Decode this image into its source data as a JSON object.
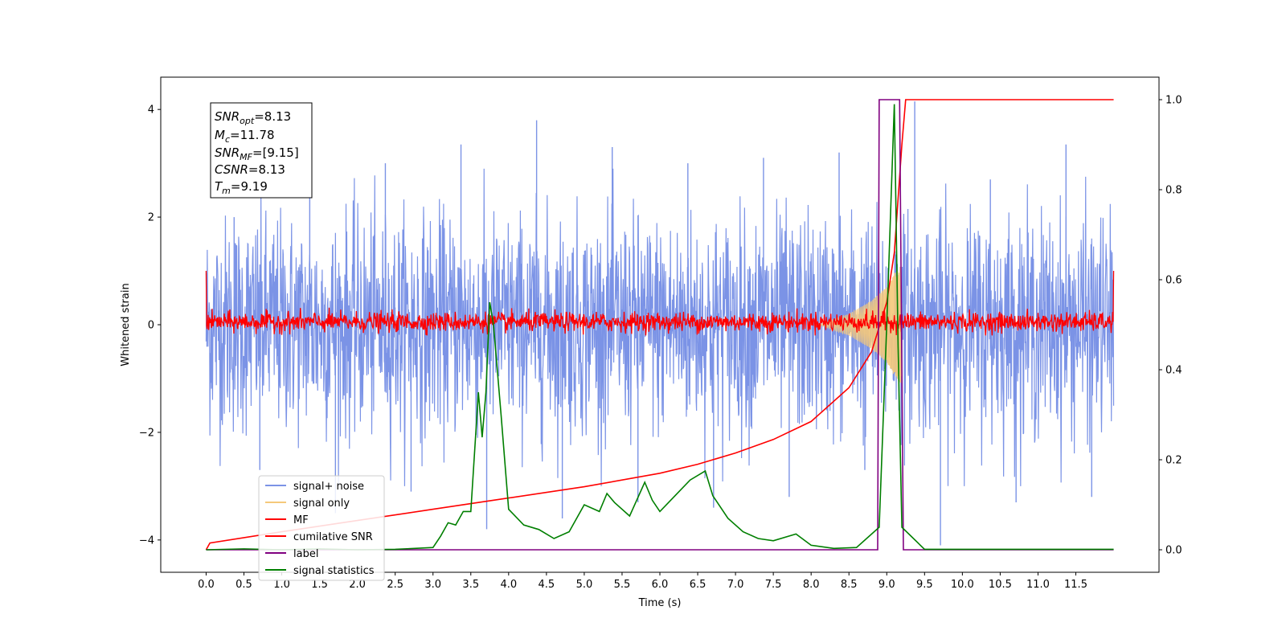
{
  "chart_data": {
    "type": "line",
    "xlabel": "Time (s)",
    "ylabel": "Whitened strain",
    "xlim": [
      -0.6,
      12.6
    ],
    "ylim": [
      -4.6,
      4.6
    ],
    "y2lim": [
      -0.05,
      1.05
    ],
    "x_ticks": [
      0.0,
      0.5,
      1.0,
      1.5,
      2.0,
      2.5,
      3.0,
      3.5,
      4.0,
      4.5,
      5.0,
      5.5,
      6.0,
      6.5,
      7.0,
      7.5,
      8.0,
      8.5,
      9.0,
      9.5,
      10.0,
      10.5,
      11.0,
      11.5
    ],
    "x_tick_labels": [
      "0.0",
      "0.5",
      "1.0",
      "1.5",
      "2.0",
      "2.5",
      "3.0",
      "3.5",
      "4.0",
      "4.5",
      "5.0",
      "5.5",
      "6.0",
      "6.5",
      "7.0",
      "7.5",
      "8.0",
      "8.5",
      "9.0",
      "9.5",
      "10.0",
      "10.5",
      "11.0",
      "11.5"
    ],
    "y_ticks": [
      -4,
      -2,
      0,
      2,
      4
    ],
    "y_tick_labels": [
      "−4",
      "−2",
      "0",
      "2",
      "4"
    ],
    "y2_ticks": [
      0.0,
      0.2,
      0.4,
      0.6,
      0.8,
      1.0
    ],
    "y2_tick_labels": [
      "0.0",
      "0.2",
      "0.4",
      "0.6",
      "0.8",
      "1.0"
    ],
    "info_box": {
      "lines": [
        {
          "base": "SNR",
          "sub": "opt",
          "value": "=8.13"
        },
        {
          "base": "M",
          "sub": "c",
          "value": "=11.78"
        },
        {
          "base": "SNR",
          "sub": "MF",
          "value": "=[9.15]"
        },
        {
          "base": "CSNR",
          "sub": "",
          "value": "=8.13"
        },
        {
          "base": "T",
          "sub": "m",
          "value": "=9.19"
        }
      ]
    },
    "legend": {
      "position": "lower-left",
      "items": [
        {
          "label": "signal+ noise",
          "color": "#7b93e6"
        },
        {
          "label": "signal only",
          "color": "#f5c97a"
        },
        {
          "label": "MF",
          "color": "#ff0000"
        },
        {
          "label": "cumilative SNR",
          "color": "#ff0000"
        },
        {
          "label": "label",
          "color": "#800080"
        },
        {
          "label": "signal statistics",
          "color": "#007f00"
        }
      ]
    },
    "series": [
      {
        "name": "signal+ noise",
        "axis": "left",
        "color": "#7b93e6",
        "x_range": [
          0.0,
          12.0
        ],
        "noise_std": 1.0,
        "peak_values": [
          2.0,
          2.6,
          3.0,
          3.35,
          3.8,
          3.3,
          3.0,
          3.1,
          3.2,
          4.15,
          2.7,
          3.35
        ],
        "trough_values": [
          -2.7,
          -3.5,
          -3.1,
          -3.8,
          -3.6,
          -3.3,
          -3.4,
          -3.2,
          -2.7,
          -4.1,
          -3.3,
          -3.2
        ]
      },
      {
        "name": "signal only",
        "axis": "left",
        "color": "#f5c97a",
        "envelope": [
          [
            8.1,
            0.0
          ],
          [
            8.5,
            0.2
          ],
          [
            8.8,
            0.45
          ],
          [
            9.0,
            0.7
          ],
          [
            9.1,
            0.95
          ],
          [
            9.19,
            1.1
          ],
          [
            9.2,
            0.0
          ]
        ]
      },
      {
        "name": "MF",
        "axis": "left",
        "color": "#ff0000",
        "x_range": [
          0.0,
          12.0
        ],
        "band": [
          -0.2,
          0.35
        ],
        "edge_values": [
          1.0,
          1.0
        ]
      },
      {
        "name": "cumilative SNR",
        "axis": "right",
        "color": "#ff0000",
        "points": [
          [
            0.0,
            0.0
          ],
          [
            0.05,
            0.015
          ],
          [
            1.0,
            0.04
          ],
          [
            2.0,
            0.065
          ],
          [
            3.0,
            0.09
          ],
          [
            4.0,
            0.115
          ],
          [
            5.0,
            0.14
          ],
          [
            6.0,
            0.17
          ],
          [
            6.5,
            0.19
          ],
          [
            7.0,
            0.215
          ],
          [
            7.5,
            0.245
          ],
          [
            8.0,
            0.285
          ],
          [
            8.5,
            0.36
          ],
          [
            8.8,
            0.44
          ],
          [
            9.0,
            0.55
          ],
          [
            9.1,
            0.66
          ],
          [
            9.2,
            0.9
          ],
          [
            9.25,
            1.0
          ],
          [
            12.0,
            1.0
          ]
        ]
      },
      {
        "name": "label",
        "axis": "right",
        "color": "#800080",
        "points": [
          [
            0.0,
            0.0
          ],
          [
            8.88,
            0.0
          ],
          [
            8.9,
            1.0
          ],
          [
            9.17,
            1.0
          ],
          [
            9.22,
            0.0
          ],
          [
            12.0,
            0.0
          ]
        ]
      },
      {
        "name": "signal statistics",
        "axis": "right",
        "color": "#007f00",
        "points": [
          [
            0.0,
            0.0
          ],
          [
            0.5,
            0.002
          ],
          [
            1.0,
            0.0
          ],
          [
            1.5,
            0.002
          ],
          [
            2.0,
            0.0
          ],
          [
            2.5,
            0.001
          ],
          [
            3.0,
            0.005
          ],
          [
            3.1,
            0.03
          ],
          [
            3.2,
            0.06
          ],
          [
            3.3,
            0.055
          ],
          [
            3.4,
            0.085
          ],
          [
            3.5,
            0.085
          ],
          [
            3.6,
            0.35
          ],
          [
            3.65,
            0.25
          ],
          [
            3.7,
            0.35
          ],
          [
            3.75,
            0.55
          ],
          [
            3.8,
            0.5
          ],
          [
            3.9,
            0.3
          ],
          [
            4.0,
            0.09
          ],
          [
            4.2,
            0.055
          ],
          [
            4.4,
            0.045
          ],
          [
            4.6,
            0.025
          ],
          [
            4.8,
            0.04
          ],
          [
            5.0,
            0.1
          ],
          [
            5.2,
            0.085
          ],
          [
            5.3,
            0.125
          ],
          [
            5.4,
            0.105
          ],
          [
            5.6,
            0.075
          ],
          [
            5.8,
            0.15
          ],
          [
            5.9,
            0.11
          ],
          [
            6.0,
            0.085
          ],
          [
            6.2,
            0.12
          ],
          [
            6.4,
            0.155
          ],
          [
            6.6,
            0.175
          ],
          [
            6.7,
            0.12
          ],
          [
            6.9,
            0.07
          ],
          [
            7.1,
            0.04
          ],
          [
            7.3,
            0.025
          ],
          [
            7.5,
            0.02
          ],
          [
            7.8,
            0.035
          ],
          [
            8.0,
            0.01
          ],
          [
            8.3,
            0.003
          ],
          [
            8.6,
            0.005
          ],
          [
            8.9,
            0.05
          ],
          [
            9.0,
            0.5
          ],
          [
            9.1,
            0.99
          ],
          [
            9.15,
            0.45
          ],
          [
            9.2,
            0.05
          ],
          [
            9.5,
            0.001
          ],
          [
            12.0,
            0.001
          ]
        ]
      }
    ]
  }
}
